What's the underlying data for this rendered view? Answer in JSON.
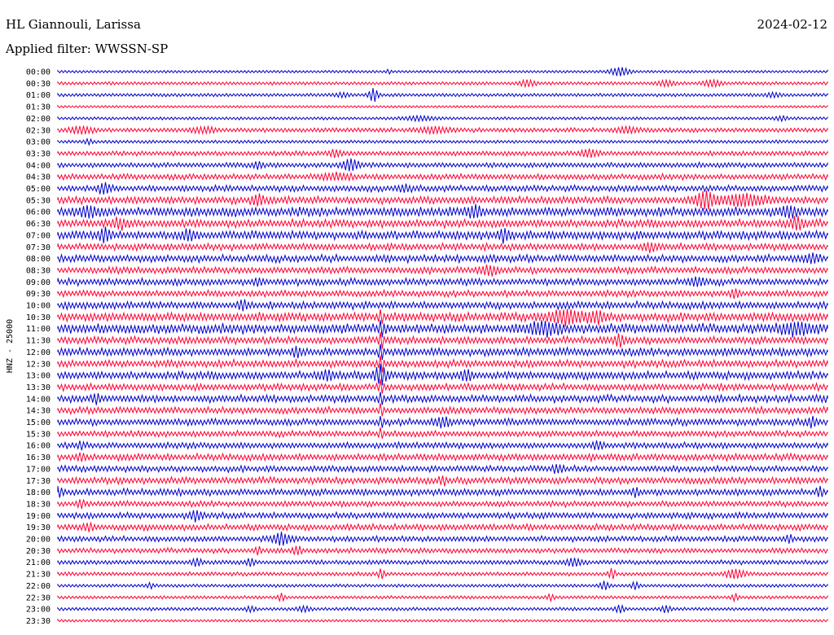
{
  "station": "HL Giannouli, Larissa",
  "date": "2024-02-12",
  "filter_label": "Applied filter: WWSSN-SP",
  "chart_data": {
    "type": "line",
    "title": "HL Giannouli, Larissa",
    "ylabel": "HNZ - 25000",
    "rows": [
      {
        "label": "00:00",
        "activity": 0.2,
        "color": "#0000cc",
        "events": [
          {
            "t": 0.73,
            "a": 1.3,
            "w": 0.012
          },
          {
            "t": 0.43,
            "a": 0.6,
            "w": 0.003
          }
        ]
      },
      {
        "label": "00:30",
        "activity": 0.3,
        "color": "#ff0033",
        "events": [
          {
            "t": 0.61,
            "a": 1.0,
            "w": 0.01
          },
          {
            "t": 0.79,
            "a": 0.8,
            "w": 0.012
          },
          {
            "t": 0.85,
            "a": 1.0,
            "w": 0.012
          }
        ]
      },
      {
        "label": "01:00",
        "activity": 0.3,
        "color": "#0000cc",
        "events": [
          {
            "t": 0.41,
            "a": 2.2,
            "w": 0.006
          },
          {
            "t": 0.37,
            "a": 0.6,
            "w": 0.01
          },
          {
            "t": 0.93,
            "a": 0.6,
            "w": 0.01
          }
        ]
      },
      {
        "label": "01:30",
        "activity": 0.15,
        "color": "#ff0033",
        "events": []
      },
      {
        "label": "02:00",
        "activity": 0.25,
        "color": "#0000cc",
        "events": [
          {
            "t": 0.47,
            "a": 0.6,
            "w": 0.02
          },
          {
            "t": 0.94,
            "a": 0.6,
            "w": 0.008
          }
        ]
      },
      {
        "label": "02:30",
        "activity": 0.5,
        "color": "#ff0033",
        "events": [
          {
            "t": 0.03,
            "a": 1.0,
            "w": 0.015
          },
          {
            "t": 0.19,
            "a": 0.8,
            "w": 0.015
          },
          {
            "t": 0.49,
            "a": 0.8,
            "w": 0.02
          },
          {
            "t": 0.74,
            "a": 0.8,
            "w": 0.015
          }
        ]
      },
      {
        "label": "03:00",
        "activity": 0.3,
        "color": "#0000cc",
        "events": [
          {
            "t": 0.04,
            "a": 0.8,
            "w": 0.005
          }
        ]
      },
      {
        "label": "03:30",
        "activity": 0.55,
        "color": "#ff0033",
        "events": [
          {
            "t": 0.36,
            "a": 1.0,
            "w": 0.008
          },
          {
            "t": 0.69,
            "a": 1.0,
            "w": 0.012
          }
        ]
      },
      {
        "label": "04:00",
        "activity": 0.6,
        "color": "#0000cc",
        "events": [
          {
            "t": 0.38,
            "a": 1.8,
            "w": 0.01
          },
          {
            "t": 0.26,
            "a": 1.0,
            "w": 0.006
          }
        ]
      },
      {
        "label": "04:30",
        "activity": 0.7,
        "color": "#ff0033",
        "events": [
          {
            "t": 0.36,
            "a": 0.8,
            "w": 0.02
          }
        ]
      },
      {
        "label": "05:00",
        "activity": 0.8,
        "color": "#0000cc",
        "events": [
          {
            "t": 0.06,
            "a": 1.6,
            "w": 0.008
          },
          {
            "t": 0.45,
            "a": 0.8,
            "w": 0.01
          }
        ]
      },
      {
        "label": "05:30",
        "activity": 1.0,
        "color": "#ff0033",
        "events": [
          {
            "t": 0.84,
            "a": 2.6,
            "w": 0.012
          },
          {
            "t": 0.89,
            "a": 1.6,
            "w": 0.03
          },
          {
            "t": 0.26,
            "a": 1.5,
            "w": 0.008
          }
        ]
      },
      {
        "label": "06:00",
        "activity": 1.3,
        "color": "#0000cc",
        "events": [
          {
            "t": 0.04,
            "a": 1.6,
            "w": 0.01
          },
          {
            "t": 0.54,
            "a": 1.3,
            "w": 0.01
          },
          {
            "t": 0.95,
            "a": 1.5,
            "w": 0.01
          }
        ]
      },
      {
        "label": "06:30",
        "activity": 1.1,
        "color": "#ff0033",
        "events": [
          {
            "t": 0.08,
            "a": 1.2,
            "w": 0.01
          },
          {
            "t": 0.96,
            "a": 1.4,
            "w": 0.01
          }
        ]
      },
      {
        "label": "07:00",
        "activity": 1.2,
        "color": "#0000cc",
        "events": [
          {
            "t": 0.06,
            "a": 1.8,
            "w": 0.008
          },
          {
            "t": 0.17,
            "a": 1.4,
            "w": 0.008
          },
          {
            "t": 0.58,
            "a": 1.5,
            "w": 0.008
          }
        ]
      },
      {
        "label": "07:30",
        "activity": 0.9,
        "color": "#ff0033",
        "events": [
          {
            "t": 0.77,
            "a": 1.0,
            "w": 0.01
          }
        ]
      },
      {
        "label": "08:00",
        "activity": 1.0,
        "color": "#0000cc",
        "events": [
          {
            "t": 0.98,
            "a": 1.3,
            "w": 0.01
          }
        ]
      },
      {
        "label": "08:30",
        "activity": 0.9,
        "color": "#ff0033",
        "events": [
          {
            "t": 0.56,
            "a": 1.2,
            "w": 0.01
          }
        ]
      },
      {
        "label": "09:00",
        "activity": 0.9,
        "color": "#0000cc",
        "events": [
          {
            "t": 0.26,
            "a": 1.0,
            "w": 0.006
          },
          {
            "t": 0.83,
            "a": 1.2,
            "w": 0.01
          }
        ]
      },
      {
        "label": "09:30",
        "activity": 0.85,
        "color": "#ff0033",
        "events": [
          {
            "t": 0.88,
            "a": 1.2,
            "w": 0.006
          }
        ]
      },
      {
        "label": "10:00",
        "activity": 1.0,
        "color": "#0000cc",
        "events": [
          {
            "t": 0.24,
            "a": 1.5,
            "w": 0.006
          }
        ]
      },
      {
        "label": "10:30",
        "activity": 1.2,
        "color": "#ff0033",
        "events": [
          {
            "t": 0.66,
            "a": 2.0,
            "w": 0.02
          },
          {
            "t": 0.42,
            "a": 1.5,
            "w": 0.004
          },
          {
            "t": 0.7,
            "a": 1.6,
            "w": 0.012
          }
        ]
      },
      {
        "label": "11:00",
        "activity": 1.4,
        "color": "#0000cc",
        "events": [
          {
            "t": 0.42,
            "a": 2.5,
            "w": 0.003
          },
          {
            "t": 0.63,
            "a": 1.6,
            "w": 0.02
          },
          {
            "t": 0.96,
            "a": 1.6,
            "w": 0.02
          }
        ]
      },
      {
        "label": "11:30",
        "activity": 1.0,
        "color": "#ff0033",
        "events": [
          {
            "t": 0.42,
            "a": 2.5,
            "w": 0.003
          },
          {
            "t": 0.73,
            "a": 1.3,
            "w": 0.008
          }
        ]
      },
      {
        "label": "12:00",
        "activity": 1.1,
        "color": "#0000cc",
        "events": [
          {
            "t": 0.42,
            "a": 2.5,
            "w": 0.003
          },
          {
            "t": 0.31,
            "a": 1.4,
            "w": 0.006
          }
        ]
      },
      {
        "label": "12:30",
        "activity": 1.0,
        "color": "#ff0033",
        "events": [
          {
            "t": 0.42,
            "a": 2.5,
            "w": 0.003
          }
        ]
      },
      {
        "label": "13:00",
        "activity": 1.1,
        "color": "#0000cc",
        "events": [
          {
            "t": 0.42,
            "a": 2.8,
            "w": 0.008
          },
          {
            "t": 0.35,
            "a": 1.4,
            "w": 0.008
          },
          {
            "t": 0.53,
            "a": 1.4,
            "w": 0.008
          }
        ]
      },
      {
        "label": "13:30",
        "activity": 0.9,
        "color": "#ff0033",
        "events": [
          {
            "t": 0.42,
            "a": 2.3,
            "w": 0.003
          }
        ]
      },
      {
        "label": "14:00",
        "activity": 1.0,
        "color": "#0000cc",
        "events": [
          {
            "t": 0.42,
            "a": 2.0,
            "w": 0.003
          },
          {
            "t": 0.05,
            "a": 1.2,
            "w": 0.006
          }
        ]
      },
      {
        "label": "14:30",
        "activity": 0.9,
        "color": "#ff0033",
        "events": [
          {
            "t": 0.42,
            "a": 1.8,
            "w": 0.003
          }
        ]
      },
      {
        "label": "15:00",
        "activity": 0.9,
        "color": "#0000cc",
        "events": [
          {
            "t": 0.42,
            "a": 1.6,
            "w": 0.003
          },
          {
            "t": 0.5,
            "a": 1.2,
            "w": 0.01
          },
          {
            "t": 0.98,
            "a": 1.2,
            "w": 0.006
          }
        ]
      },
      {
        "label": "15:30",
        "activity": 0.8,
        "color": "#ff0033",
        "events": [
          {
            "t": 0.42,
            "a": 1.4,
            "w": 0.003
          }
        ]
      },
      {
        "label": "16:00",
        "activity": 0.8,
        "color": "#0000cc",
        "events": [
          {
            "t": 0.03,
            "a": 1.2,
            "w": 0.004
          },
          {
            "t": 0.7,
            "a": 1.2,
            "w": 0.006
          }
        ]
      },
      {
        "label": "16:30",
        "activity": 0.9,
        "color": "#ff0033",
        "events": [
          {
            "t": 0.03,
            "a": 1.0,
            "w": 0.006
          }
        ]
      },
      {
        "label": "17:00",
        "activity": 0.8,
        "color": "#0000cc",
        "events": [
          {
            "t": 0.65,
            "a": 1.0,
            "w": 0.006
          }
        ]
      },
      {
        "label": "17:30",
        "activity": 0.9,
        "color": "#ff0033",
        "events": [
          {
            "t": 0.5,
            "a": 1.2,
            "w": 0.005
          }
        ]
      },
      {
        "label": "18:00",
        "activity": 0.9,
        "color": "#0000cc",
        "events": [
          {
            "t": 0.0,
            "a": 1.4,
            "w": 0.005
          },
          {
            "t": 0.75,
            "a": 1.3,
            "w": 0.004
          },
          {
            "t": 0.99,
            "a": 1.3,
            "w": 0.004
          }
        ]
      },
      {
        "label": "18:30",
        "activity": 0.7,
        "color": "#ff0033",
        "events": [
          {
            "t": 0.03,
            "a": 1.2,
            "w": 0.004
          }
        ]
      },
      {
        "label": "19:00",
        "activity": 0.8,
        "color": "#0000cc",
        "events": [
          {
            "t": 0.18,
            "a": 1.4,
            "w": 0.008
          }
        ]
      },
      {
        "label": "19:30",
        "activity": 0.8,
        "color": "#ff0033",
        "events": [
          {
            "t": 0.04,
            "a": 1.0,
            "w": 0.008
          }
        ]
      },
      {
        "label": "20:00",
        "activity": 0.7,
        "color": "#0000cc",
        "events": [
          {
            "t": 0.29,
            "a": 1.6,
            "w": 0.012
          },
          {
            "t": 0.95,
            "a": 1.2,
            "w": 0.004
          }
        ]
      },
      {
        "label": "20:30",
        "activity": 0.6,
        "color": "#ff0033",
        "events": [
          {
            "t": 0.26,
            "a": 1.2,
            "w": 0.004
          },
          {
            "t": 0.31,
            "a": 1.2,
            "w": 0.006
          }
        ]
      },
      {
        "label": "21:00",
        "activity": 0.5,
        "color": "#0000cc",
        "events": [
          {
            "t": 0.18,
            "a": 1.2,
            "w": 0.006
          },
          {
            "t": 0.25,
            "a": 1.2,
            "w": 0.005
          },
          {
            "t": 0.67,
            "a": 1.2,
            "w": 0.01
          }
        ]
      },
      {
        "label": "21:30",
        "activity": 0.4,
        "color": "#ff0033",
        "events": [
          {
            "t": 0.42,
            "a": 1.6,
            "w": 0.004
          },
          {
            "t": 0.72,
            "a": 1.6,
            "w": 0.004
          },
          {
            "t": 0.88,
            "a": 1.4,
            "w": 0.012
          }
        ]
      },
      {
        "label": "22:00",
        "activity": 0.3,
        "color": "#0000cc",
        "events": [
          {
            "t": 0.71,
            "a": 1.3,
            "w": 0.006
          },
          {
            "t": 0.75,
            "a": 1.2,
            "w": 0.005
          },
          {
            "t": 0.12,
            "a": 0.8,
            "w": 0.004
          }
        ]
      },
      {
        "label": "22:30",
        "activity": 0.3,
        "color": "#ff0033",
        "events": [
          {
            "t": 0.29,
            "a": 1.2,
            "w": 0.004
          },
          {
            "t": 0.64,
            "a": 1.0,
            "w": 0.004
          },
          {
            "t": 0.88,
            "a": 1.2,
            "w": 0.004
          }
        ]
      },
      {
        "label": "23:00",
        "activity": 0.3,
        "color": "#0000cc",
        "events": [
          {
            "t": 0.25,
            "a": 0.8,
            "w": 0.006
          },
          {
            "t": 0.32,
            "a": 0.8,
            "w": 0.008
          },
          {
            "t": 0.73,
            "a": 1.2,
            "w": 0.006
          },
          {
            "t": 0.79,
            "a": 1.0,
            "w": 0.006
          }
        ]
      },
      {
        "label": "23:30",
        "activity": 0.2,
        "color": "#ff0033",
        "events": []
      }
    ]
  }
}
